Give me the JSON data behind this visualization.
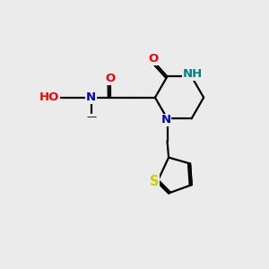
{
  "background_color": "#ebebeb",
  "bond_color": "#000000",
  "atom_colors": {
    "O": "#ff0000",
    "N": "#0000cc",
    "NH": "#008080",
    "S": "#cccc00",
    "HO": "#ff0000",
    "C": "#000000"
  },
  "lw": 1.6,
  "font_size": 9.5
}
